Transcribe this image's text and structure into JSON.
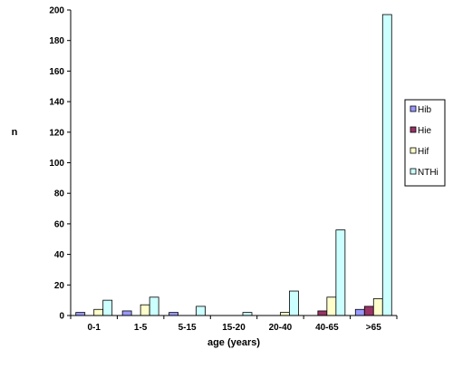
{
  "chart_data": {
    "type": "bar",
    "title": "",
    "xlabel": "age (years)",
    "ylabel": "n",
    "ylim": [
      0,
      200
    ],
    "y_ticks": [
      0,
      20,
      40,
      60,
      80,
      100,
      120,
      140,
      160,
      180,
      200
    ],
    "grid": false,
    "legend_position": "right",
    "categories": [
      "0-1",
      "1-5",
      "5-15",
      "15-20",
      "20-40",
      "40-65",
      ">65"
    ],
    "series": [
      {
        "name": "Hib",
        "color": "#9999ff",
        "values": [
          2,
          3,
          2,
          0,
          0,
          0,
          4
        ]
      },
      {
        "name": "Hie",
        "color": "#993366",
        "values": [
          0,
          0,
          0,
          0,
          0,
          3,
          6
        ]
      },
      {
        "name": "Hif",
        "color": "#ffffcc",
        "values": [
          4,
          7,
          0,
          0,
          2,
          12,
          11
        ]
      },
      {
        "name": "NTHi",
        "color": "#ccffff",
        "values": [
          10,
          12,
          6,
          2,
          16,
          56,
          197
        ]
      }
    ]
  }
}
